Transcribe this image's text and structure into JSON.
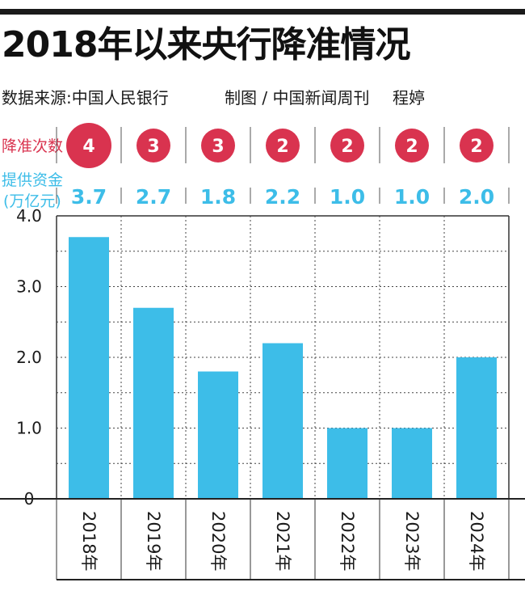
{
  "header": {
    "title": "2018年以来央行降准情况",
    "source": "数据来源:中国人民银行",
    "credit": "制图 / 中国新闻周刊",
    "author": "程婷"
  },
  "colors": {
    "bar": "#3dbde8",
    "circle": "#d9334f",
    "label_red": "#d9334f",
    "label_blue": "#3dbde8",
    "text": "#1a1a1a"
  },
  "chart_data": {
    "type": "bar",
    "categories": [
      "2018年",
      "2019年",
      "2020年",
      "2021年",
      "2022年",
      "2023年",
      "2024年"
    ],
    "series": [
      {
        "name": "提供资金(万亿元)",
        "values": [
          3.7,
          2.7,
          1.8,
          2.2,
          1.0,
          1.0,
          2.0
        ]
      }
    ],
    "value_labels": [
      "3.7",
      "2.7",
      "1.8",
      "2.2",
      "1.0",
      "1.0",
      "2.0"
    ],
    "cut_counts": [
      4,
      3,
      3,
      2,
      2,
      2,
      2
    ],
    "row_labels": {
      "cuts": "降准次数",
      "funds_line1": "提供资金",
      "funds_line2": "(万亿元)"
    },
    "y_ticks": [
      "0",
      "1.0",
      "2.0",
      "3.0",
      "4.0"
    ],
    "ylim": [
      0,
      4.0
    ],
    "grid": true,
    "legend": "none"
  }
}
